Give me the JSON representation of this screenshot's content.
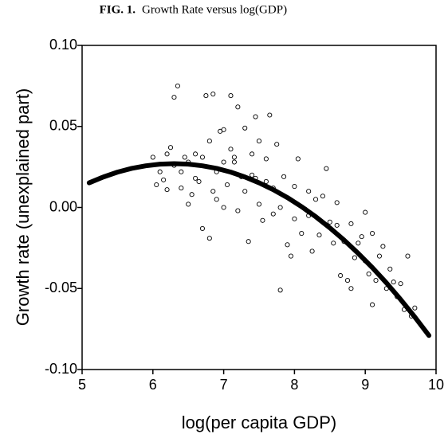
{
  "chart_data": {
    "type": "scatter",
    "fig_label": "FIG. 1.",
    "title": "Growth Rate versus log(GDP)",
    "xlabel": "log(per capita GDP)",
    "ylabel": "Growth rate (unexplained part)",
    "xlim": [
      5,
      10
    ],
    "ylim": [
      -0.1,
      0.1
    ],
    "xticks": [
      5,
      6,
      7,
      8,
      9,
      10
    ],
    "yticks": [
      {
        "value": 0.1,
        "label": "0.10"
      },
      0.05,
      {
        "value": 0,
        "label": "0.00"
      },
      -0.05,
      {
        "value": -0.1,
        "label": "-0.10"
      }
    ],
    "series": [
      {
        "type": "scatter",
        "color": "#000000",
        "x": [
          6.0,
          6.05,
          6.1,
          6.15,
          6.2,
          6.25,
          6.3,
          6.35,
          6.3,
          6.4,
          6.4,
          6.45,
          6.5,
          6.55,
          6.6,
          6.6,
          6.65,
          6.7,
          6.7,
          6.75,
          6.8,
          6.8,
          6.85,
          6.85,
          6.9,
          6.95,
          7.0,
          7.0,
          7.05,
          7.1,
          7.1,
          7.15,
          7.2,
          7.2,
          7.25,
          7.3,
          7.35,
          7.4,
          7.4,
          7.45,
          7.5,
          7.5,
          7.55,
          7.6,
          7.65,
          7.7,
          7.7,
          7.75,
          7.8,
          7.8,
          7.85,
          7.9,
          7.95,
          8.0,
          8.0,
          8.05,
          8.1,
          8.15,
          8.2,
          8.25,
          8.3,
          8.35,
          8.4,
          8.45,
          8.5,
          8.55,
          8.6,
          8.65,
          8.7,
          8.75,
          8.8,
          8.85,
          8.9,
          8.95,
          9.0,
          9.0,
          9.05,
          9.1,
          9.15,
          9.2,
          9.25,
          9.3,
          9.35,
          9.4,
          9.45,
          9.5,
          9.55,
          9.6,
          9.65,
          9.7,
          6.9,
          7.3,
          7.6,
          8.2,
          8.8,
          9.1,
          6.5,
          7.0,
          7.15,
          7.45,
          8.6,
          6.2
        ],
        "values": [
          0.031,
          0.014,
          0.022,
          0.017,
          0.033,
          0.037,
          0.068,
          0.075,
          0.026,
          0.022,
          0.012,
          0.031,
          0.002,
          0.008,
          0.018,
          0.033,
          0.016,
          -0.013,
          0.031,
          0.069,
          0.041,
          -0.019,
          0.07,
          0.01,
          0.022,
          0.047,
          0.048,
          0.0,
          0.014,
          0.069,
          0.036,
          0.028,
          0.062,
          -0.002,
          0.019,
          0.049,
          -0.021,
          0.02,
          0.033,
          0.056,
          0.041,
          0.002,
          -0.008,
          0.03,
          0.057,
          0.012,
          -0.004,
          0.039,
          0.0,
          -0.051,
          0.019,
          -0.023,
          -0.03,
          0.013,
          -0.007,
          0.03,
          -0.016,
          -0.001,
          0.01,
          -0.027,
          0.005,
          -0.017,
          0.007,
          0.024,
          -0.009,
          -0.022,
          -0.011,
          -0.042,
          -0.021,
          -0.045,
          -0.01,
          -0.031,
          -0.022,
          -0.018,
          -0.003,
          -0.033,
          -0.041,
          -0.016,
          -0.045,
          -0.03,
          -0.024,
          -0.05,
          -0.038,
          -0.046,
          -0.055,
          -0.047,
          -0.063,
          -0.03,
          -0.067,
          -0.062,
          0.005,
          0.01,
          0.016,
          -0.005,
          -0.05,
          -0.06,
          0.028,
          0.028,
          0.031,
          0.018,
          0.003,
          0.011
        ]
      },
      {
        "type": "line",
        "color": "#000000",
        "x": [
          5.1,
          5.3,
          5.5,
          5.7,
          5.9,
          6.1,
          6.3,
          6.5,
          6.7,
          6.9,
          7.1,
          7.3,
          7.5,
          7.7,
          7.9,
          8.1,
          8.3,
          8.5,
          8.7,
          8.9,
          9.1,
          9.3,
          9.5,
          9.7,
          9.9
        ],
        "values": [
          0.0152,
          0.0188,
          0.0218,
          0.0241,
          0.0257,
          0.0267,
          0.027,
          0.0267,
          0.0257,
          0.0241,
          0.0218,
          0.0188,
          0.0152,
          0.011,
          0.0061,
          0.0005,
          -0.0057,
          -0.0126,
          -0.0201,
          -0.0283,
          -0.0371,
          -0.0466,
          -0.0568,
          -0.0676,
          -0.079
        ]
      }
    ]
  }
}
